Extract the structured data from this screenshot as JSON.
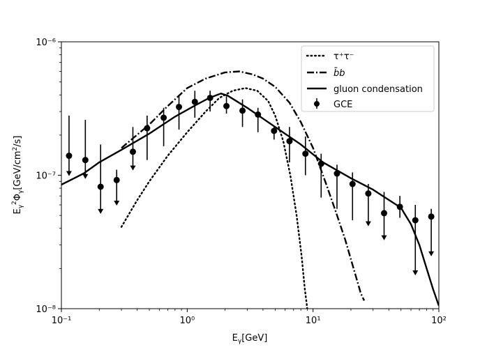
{
  "chart_data": {
    "type": "line",
    "xlabel": "E_γ[GeV]",
    "ylabel": "E_γ²Φ_γ[GeV/cm²/s]",
    "xscale": "log",
    "yscale": "log",
    "xlim": [
      0.1,
      100
    ],
    "ylim": [
      1e-08,
      1e-06
    ],
    "grid": false,
    "legend_position": "top-right",
    "x_ticks": [
      {
        "value": 0.1,
        "label": "10⁻¹"
      },
      {
        "value": 1,
        "label": "10⁰"
      },
      {
        "value": 10,
        "label": "10¹"
      },
      {
        "value": 100,
        "label": "10²"
      }
    ],
    "y_ticks": [
      {
        "value": 1e-08,
        "label": "10⁻⁸"
      },
      {
        "value": 1e-07,
        "label": "10⁻⁷"
      },
      {
        "value": 1e-06,
        "label": "10⁻⁶"
      }
    ],
    "series": [
      {
        "name": "τ⁺τ⁻",
        "style": "dotted",
        "color": "#000000",
        "x": [
          0.3,
          0.4,
          0.5,
          0.7,
          1.0,
          1.4,
          1.8,
          2.3,
          2.9,
          3.6,
          4.4,
          5.0,
          5.8,
          6.6,
          7.4,
          8.1,
          8.6,
          9.0
        ],
        "y": [
          4.1e-08,
          6.5e-08,
          9e-08,
          1.4e-07,
          2.1e-07,
          3e-07,
          3.8e-07,
          4.3e-07,
          4.5e-07,
          4.3e-07,
          3.6e-07,
          2.8e-07,
          1.8e-07,
          1e-07,
          5e-08,
          2.5e-08,
          1.4e-08,
          1e-08
        ]
      },
      {
        "name": "b̄b",
        "style": "dashdot",
        "color": "#000000",
        "x": [
          0.3,
          0.5,
          0.7,
          1.0,
          1.4,
          2.0,
          2.6,
          3.3,
          4.0,
          5.0,
          6.5,
          8.0,
          10.0,
          12.5,
          15.0,
          18.0,
          21.0,
          24.0,
          25.5
        ],
        "y": [
          1.6e-07,
          2.4e-07,
          3.3e-07,
          4.5e-07,
          5.3e-07,
          5.9e-07,
          6e-07,
          5.7e-07,
          5.3e-07,
          4.6e-07,
          3.5e-07,
          2.5e-07,
          1.6e-07,
          9e-08,
          5.5e-08,
          3.3e-08,
          2e-08,
          1.3e-08,
          1.15e-08
        ]
      },
      {
        "name": "gluon condensation",
        "style": "solid",
        "color": "#000000",
        "x": [
          0.1,
          0.15,
          0.2,
          0.3,
          0.5,
          0.8,
          1.2,
          1.5,
          1.85,
          2.1,
          3.0,
          5.0,
          8.0,
          12.0,
          20.0,
          30.0,
          50.0,
          60.0,
          70.0,
          80.0,
          90.0,
          100.0
        ],
        "y": [
          8.5e-08,
          1.03e-07,
          1.25e-07,
          1.55e-07,
          2.05e-07,
          2.75e-07,
          3.4e-07,
          3.8e-07,
          4.1e-07,
          3.95e-07,
          3.2e-07,
          2.3e-07,
          1.7e-07,
          1.25e-07,
          9.5e-08,
          7.8e-08,
          5.7e-08,
          4.3e-08,
          3e-08,
          2e-08,
          1.4e-08,
          1.05e-08
        ]
      }
    ],
    "points": {
      "name": "GCE",
      "color": "#000000",
      "data": [
        {
          "x": 0.115,
          "y": 1.4e-07,
          "y_high": 2.8e-07,
          "y_low": 1e-07,
          "upper_limit": true
        },
        {
          "x": 0.155,
          "y": 1.3e-07,
          "y_high": 2.6e-07,
          "y_low": 9.5e-08,
          "upper_limit": true
        },
        {
          "x": 0.205,
          "y": 8.2e-08,
          "y_high": 1.7e-07,
          "y_low": 5.2e-08,
          "upper_limit": true
        },
        {
          "x": 0.275,
          "y": 9.2e-08,
          "y_high": 1.1e-07,
          "y_low": 6e-08,
          "upper_limit": true
        },
        {
          "x": 0.37,
          "y": 1.5e-07,
          "y_high": 2.3e-07,
          "y_low": 1.1e-07,
          "upper_limit": true
        },
        {
          "x": 0.48,
          "y": 2.25e-07,
          "y_high": 2.8e-07,
          "y_low": 1.3e-07,
          "upper_limit": false
        },
        {
          "x": 0.65,
          "y": 2.7e-07,
          "y_high": 3.2e-07,
          "y_low": 1.65e-07,
          "upper_limit": false
        },
        {
          "x": 0.86,
          "y": 3.25e-07,
          "y_high": 4e-07,
          "y_low": 2.2e-07,
          "upper_limit": false
        },
        {
          "x": 1.15,
          "y": 3.55e-07,
          "y_high": 4.3e-07,
          "y_low": 2.7e-07,
          "upper_limit": false
        },
        {
          "x": 1.52,
          "y": 3.8e-07,
          "y_high": 4.3e-07,
          "y_low": 3e-07,
          "upper_limit": false
        },
        {
          "x": 2.05,
          "y": 3.3e-07,
          "y_high": 3.9e-07,
          "y_low": 2.9e-07,
          "upper_limit": false
        },
        {
          "x": 2.75,
          "y": 3.05e-07,
          "y_high": 3.7e-07,
          "y_low": 2.3e-07,
          "upper_limit": false
        },
        {
          "x": 3.65,
          "y": 2.85e-07,
          "y_high": 3.2e-07,
          "y_low": 2.1e-07,
          "upper_limit": false
        },
        {
          "x": 4.9,
          "y": 2.15e-07,
          "y_high": 2.3e-07,
          "y_low": 1.85e-07,
          "upper_limit": false
        },
        {
          "x": 6.5,
          "y": 1.8e-07,
          "y_high": 2.3e-07,
          "y_low": 1.25e-07,
          "upper_limit": false
        },
        {
          "x": 8.7,
          "y": 1.45e-07,
          "y_high": 1.95e-07,
          "y_low": 1e-07,
          "upper_limit": false
        },
        {
          "x": 11.6,
          "y": 1.22e-07,
          "y_high": 1.45e-07,
          "y_low": 6.8e-08,
          "upper_limit": false
        },
        {
          "x": 15.5,
          "y": 1.03e-07,
          "y_high": 1.2e-07,
          "y_low": 5.6e-08,
          "upper_limit": false
        },
        {
          "x": 20.6,
          "y": 8.6e-08,
          "y_high": 1.05e-07,
          "y_low": 4.6e-08,
          "upper_limit": false
        },
        {
          "x": 27.5,
          "y": 7.3e-08,
          "y_high": 8.6e-08,
          "y_low": 4.2e-08,
          "upper_limit": true
        },
        {
          "x": 36.7,
          "y": 5.2e-08,
          "y_high": 7.5e-08,
          "y_low": 3.3e-08,
          "upper_limit": true
        },
        {
          "x": 49.0,
          "y": 5.8e-08,
          "y_high": 7e-08,
          "y_low": 4.8e-08,
          "upper_limit": false
        },
        {
          "x": 65.0,
          "y": 4.6e-08,
          "y_high": 6e-08,
          "y_low": 1.8e-08,
          "upper_limit": true
        },
        {
          "x": 87.0,
          "y": 4.9e-08,
          "y_high": 5.6e-08,
          "y_low": 2.5e-08,
          "upper_limit": true
        }
      ]
    },
    "legend": [
      {
        "label": "τ⁺τ⁻",
        "kind": "dotted"
      },
      {
        "label": "b̄b",
        "kind": "dashdot",
        "italic": true
      },
      {
        "label": "gluon condensation",
        "kind": "solid"
      },
      {
        "label": "GCE",
        "kind": "errorbar"
      }
    ]
  }
}
